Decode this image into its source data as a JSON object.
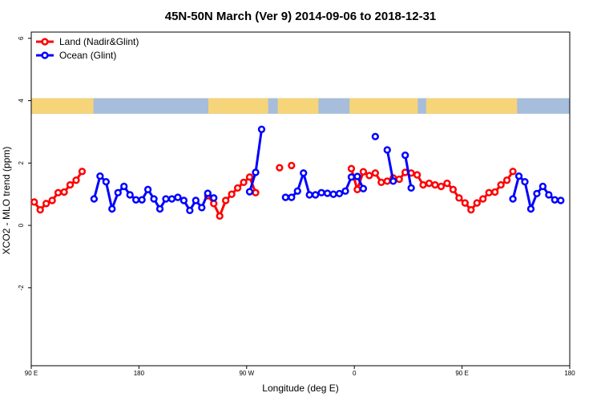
{
  "chart_data": {
    "type": "line",
    "title": "45N-50N March (Ver 9)   2014-09-06 to 2018-12-31",
    "xlabel": "Longitude (deg E)",
    "ylabel": "XCO2 - MLO trend (ppm)",
    "xlim": [
      90,
      540
    ],
    "ylim": [
      -4.5,
      6.2
    ],
    "x_ticks": [
      {
        "value": 90,
        "label": "90 E"
      },
      {
        "value": 180,
        "label": "180"
      },
      {
        "value": 270,
        "label": "90 W"
      },
      {
        "value": 360,
        "label": "0"
      },
      {
        "value": 450,
        "label": "90 E"
      },
      {
        "value": 540,
        "label": "180"
      }
    ],
    "y_ticks": [
      {
        "value": -2,
        "label": "-2"
      },
      {
        "value": 0,
        "label": "0"
      },
      {
        "value": 2,
        "label": "2"
      },
      {
        "value": 4,
        "label": "4"
      },
      {
        "value": 6,
        "label": "6"
      }
    ],
    "legend": {
      "position": "top-left"
    },
    "series": [
      {
        "name": "Land (Nadir&Glint)",
        "color": "#ff0000",
        "segments": [
          [
            [
              92.5,
              0.75
            ],
            [
              97.5,
              0.5
            ],
            [
              102.5,
              0.7
            ],
            [
              107.5,
              0.8
            ],
            [
              112.5,
              1.05
            ],
            [
              117.5,
              1.07
            ],
            [
              122.5,
              1.3
            ],
            [
              127.5,
              1.45
            ],
            [
              132.5,
              1.73
            ]
          ],
          [
            [
              237.5,
              0.95
            ],
            [
              242.5,
              0.7
            ],
            [
              247.5,
              0.3
            ],
            [
              252.5,
              0.8
            ],
            [
              257.5,
              1.0
            ],
            [
              262.5,
              1.2
            ],
            [
              267.5,
              1.38
            ],
            [
              272.5,
              1.55
            ],
            [
              277.5,
              1.05
            ]
          ],
          [
            [
              297.5,
              1.85
            ]
          ],
          [
            [
              307.5,
              1.92
            ]
          ],
          [
            [
              357.5,
              1.82
            ],
            [
              362.5,
              1.15
            ],
            [
              367.5,
              1.72
            ],
            [
              372.5,
              1.6
            ],
            [
              377.5,
              1.68
            ],
            [
              382.5,
              1.38
            ],
            [
              387.5,
              1.42
            ],
            [
              392.5,
              1.52
            ],
            [
              397.5,
              1.48
            ],
            [
              402.5,
              1.7
            ],
            [
              407.5,
              1.68
            ],
            [
              412.5,
              1.62
            ],
            [
              417.5,
              1.3
            ],
            [
              422.5,
              1.35
            ],
            [
              427.5,
              1.3
            ],
            [
              432.5,
              1.25
            ],
            [
              437.5,
              1.35
            ],
            [
              442.5,
              1.15
            ],
            [
              447.5,
              0.88
            ],
            [
              452.5,
              0.72
            ],
            [
              457.5,
              0.5
            ],
            [
              462.5,
              0.72
            ],
            [
              467.5,
              0.85
            ],
            [
              472.5,
              1.05
            ],
            [
              477.5,
              1.07
            ],
            [
              482.5,
              1.3
            ],
            [
              487.5,
              1.45
            ],
            [
              492.5,
              1.73
            ]
          ]
        ]
      },
      {
        "name": "Ocean (Glint)",
        "color": "#0000ff",
        "segments": [
          [
            [
              142.5,
              0.85
            ],
            [
              147.5,
              1.58
            ],
            [
              152.5,
              1.4
            ],
            [
              157.5,
              0.53
            ],
            [
              162.5,
              1.05
            ],
            [
              167.5,
              1.25
            ],
            [
              172.5,
              0.98
            ],
            [
              177.5,
              0.82
            ],
            [
              182.5,
              0.82
            ],
            [
              187.5,
              1.15
            ],
            [
              192.5,
              0.85
            ],
            [
              197.5,
              0.53
            ],
            [
              202.5,
              0.85
            ],
            [
              207.5,
              0.85
            ],
            [
              212.5,
              0.9
            ],
            [
              217.5,
              0.8
            ],
            [
              222.5,
              0.48
            ],
            [
              227.5,
              0.8
            ],
            [
              232.5,
              0.57
            ],
            [
              237.5,
              1.03
            ],
            [
              242.5,
              0.88
            ]
          ],
          [
            [
              272.5,
              1.08
            ],
            [
              277.5,
              1.7
            ],
            [
              282.5,
              3.08
            ]
          ],
          [
            [
              302.5,
              0.9
            ],
            [
              307.5,
              0.9
            ],
            [
              312.5,
              1.1
            ],
            [
              317.5,
              1.68
            ],
            [
              322.5,
              0.98
            ],
            [
              327.5,
              0.98
            ],
            [
              332.5,
              1.05
            ],
            [
              337.5,
              1.03
            ],
            [
              342.5,
              1.0
            ],
            [
              347.5,
              1.02
            ],
            [
              352.5,
              1.1
            ],
            [
              357.5,
              1.55
            ],
            [
              362.5,
              1.57
            ],
            [
              367.5,
              1.18
            ]
          ],
          [
            [
              377.5,
              2.85
            ]
          ],
          [
            [
              387.5,
              2.42
            ],
            [
              392.5,
              1.42
            ]
          ],
          [
            [
              402.5,
              2.25
            ],
            [
              407.5,
              1.2
            ]
          ],
          [
            [
              492.5,
              0.85
            ],
            [
              497.5,
              1.58
            ],
            [
              502.5,
              1.4
            ],
            [
              507.5,
              0.53
            ],
            [
              512.5,
              1.02
            ],
            [
              517.5,
              1.25
            ],
            [
              522.5,
              0.98
            ],
            [
              527.5,
              0.82
            ],
            [
              532.5,
              0.8
            ]
          ]
        ]
      }
    ],
    "map_strip_colors": {
      "ocean": "#a6bddb",
      "land": "#f6d47a"
    }
  }
}
